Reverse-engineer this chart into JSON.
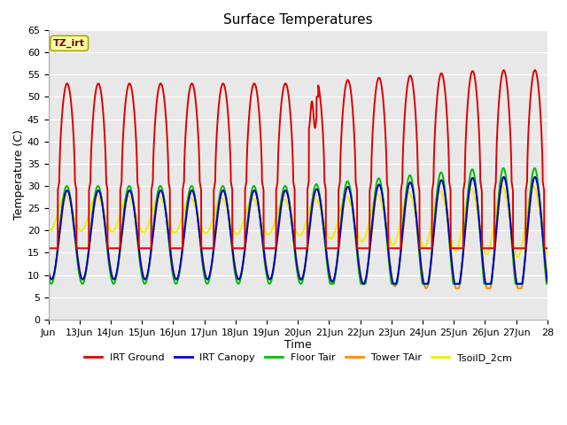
{
  "title": "Surface Temperatures",
  "xlabel": "Time",
  "ylabel": "Temperature (C)",
  "ylim": [
    0,
    65
  ],
  "yticks": [
    0,
    5,
    10,
    15,
    20,
    25,
    30,
    35,
    40,
    45,
    50,
    55,
    60,
    65
  ],
  "xtick_labels": [
    "Jun",
    "13Jun",
    "14Jun",
    "15Jun",
    "16Jun",
    "17Jun",
    "18Jun",
    "19Jun",
    "20Jun",
    "21Jun",
    "22Jun",
    "23Jun",
    "24Jun",
    "25Jun",
    "26Jun",
    "27Jun",
    "28"
  ],
  "annotation_text": "TZ_irt",
  "annotation_bg": "#ffffaa",
  "annotation_border": "#aaaa00",
  "annotation_text_color": "#880000",
  "legend_colors": [
    "#dd0000",
    "#0000cc",
    "#00bb00",
    "#ff8800",
    "#eeee00"
  ],
  "legend_labels": [
    "IRT Ground",
    "IRT Canopy",
    "Floor Tair",
    "Tower TAir",
    "TsoilD_2cm"
  ],
  "fig_bg": "#ffffff",
  "plot_bg": "#e8e8e8",
  "grid_color": "#ffffff",
  "title_fontsize": 11,
  "axis_label_fontsize": 9,
  "tick_fontsize": 8
}
